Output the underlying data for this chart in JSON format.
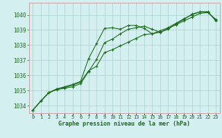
{
  "title": "Graphe pression niveau de la mer (hPa)",
  "x_labels": [
    "0",
    "1",
    "2",
    "3",
    "4",
    "5",
    "6",
    "7",
    "8",
    "9",
    "10",
    "11",
    "12",
    "13",
    "14",
    "15",
    "16",
    "17",
    "18",
    "19",
    "20",
    "21",
    "22",
    "23"
  ],
  "xlim": [
    -0.5,
    23.5
  ],
  "ylim": [
    1033.5,
    1040.8
  ],
  "yticks": [
    1034,
    1035,
    1036,
    1037,
    1038,
    1039,
    1040
  ],
  "background_color": "#d4efef",
  "grid_color": "#aed4d4",
  "line_color": "#1a6b1a",
  "line1_y": [
    1033.7,
    1034.3,
    1034.85,
    1035.1,
    1035.25,
    1035.4,
    1035.6,
    1037.1,
    1038.1,
    1039.1,
    1039.15,
    1039.05,
    1039.3,
    1039.3,
    1039.1,
    1038.75,
    1038.95,
    1039.15,
    1039.45,
    1039.75,
    1040.0,
    1040.2,
    1040.2,
    1039.6
  ],
  "line2_y": [
    1033.7,
    1034.3,
    1034.85,
    1035.1,
    1035.2,
    1035.35,
    1035.55,
    1036.3,
    1036.6,
    1037.5,
    1037.7,
    1037.95,
    1038.2,
    1038.45,
    1038.7,
    1038.75,
    1038.85,
    1039.1,
    1039.35,
    1039.6,
    1039.85,
    1040.1,
    1040.15,
    1039.7
  ],
  "line3_y": [
    1033.7,
    1034.3,
    1034.85,
    1035.05,
    1035.15,
    1035.25,
    1035.45,
    1036.25,
    1037.05,
    1038.15,
    1038.4,
    1038.75,
    1039.05,
    1039.15,
    1039.25,
    1039.05,
    1038.85,
    1039.05,
    1039.4,
    1039.7,
    1040.05,
    1040.2,
    1040.2,
    1039.65
  ]
}
